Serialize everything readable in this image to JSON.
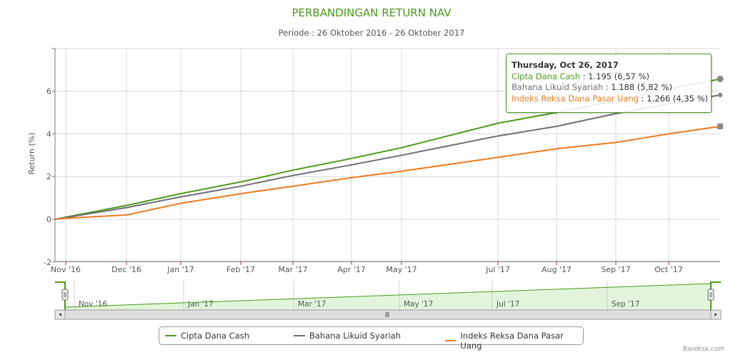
{
  "chart_data": {
    "type": "line",
    "title": "PERBANDINGAN RETURN NAV",
    "subtitle": "Periode : 26 Oktober 2016 - 26 Oktober 2017",
    "ylabel": "Return (%)",
    "ylim": [
      -2,
      8
    ],
    "yticks": [
      "-2",
      "0",
      "2",
      "4",
      "6"
    ],
    "xticks": [
      "Nov '16",
      "Dec '16",
      "Jan '17",
      "Feb '17",
      "Mar '17",
      "Apr '17",
      "May '17",
      "Jul '17",
      "Aug '17",
      "Sep '17",
      "Oct '17"
    ],
    "x": [
      "2016-10-26",
      "2016-11-01",
      "2016-12-01",
      "2017-01-01",
      "2017-02-01",
      "2017-03-01",
      "2017-04-01",
      "2017-05-01",
      "2017-07-01",
      "2017-08-01",
      "2017-09-01",
      "2017-10-01",
      "2017-10-26"
    ],
    "series": [
      {
        "name": "Cipta Dana Cash",
        "color": "#4a9a1a",
        "values": [
          0,
          0.1,
          0.65,
          1.2,
          1.75,
          2.3,
          2.85,
          3.35,
          4.5,
          5.0,
          5.55,
          6.1,
          6.57
        ]
      },
      {
        "name": "Bahana Likuid Syariah",
        "color": "#6f6d7a",
        "values": [
          0,
          0.08,
          0.55,
          1.05,
          1.55,
          2.05,
          2.55,
          3.0,
          3.9,
          4.35,
          4.95,
          5.4,
          5.82
        ]
      },
      {
        "name": "Indeks Reksa Dana Pasar Uang",
        "color": "#f07a1e",
        "values": [
          0,
          0.05,
          0.2,
          0.75,
          1.2,
          1.55,
          1.95,
          2.25,
          2.9,
          3.3,
          3.6,
          4.0,
          4.35
        ]
      }
    ],
    "navigator_ticks": [
      "Nov '16",
      "Jan '17",
      "Mar '17",
      "May '17",
      "Jul '17",
      "Sep '17"
    ]
  },
  "tooltip": {
    "date": "Thursday, Oct 26, 2017",
    "rows": [
      {
        "name": "Cipta Dana Cash",
        "value": " : 1.195 (6,57 %)"
      },
      {
        "name": "Bahana Likuid Syariah",
        "value": " : 1.188 (5,82 %)"
      },
      {
        "name": "Indeks Reksa Dana Pasar Uang",
        "value": " : 1.266 (4,35 %)"
      }
    ]
  },
  "credit": "Bareksa.com"
}
